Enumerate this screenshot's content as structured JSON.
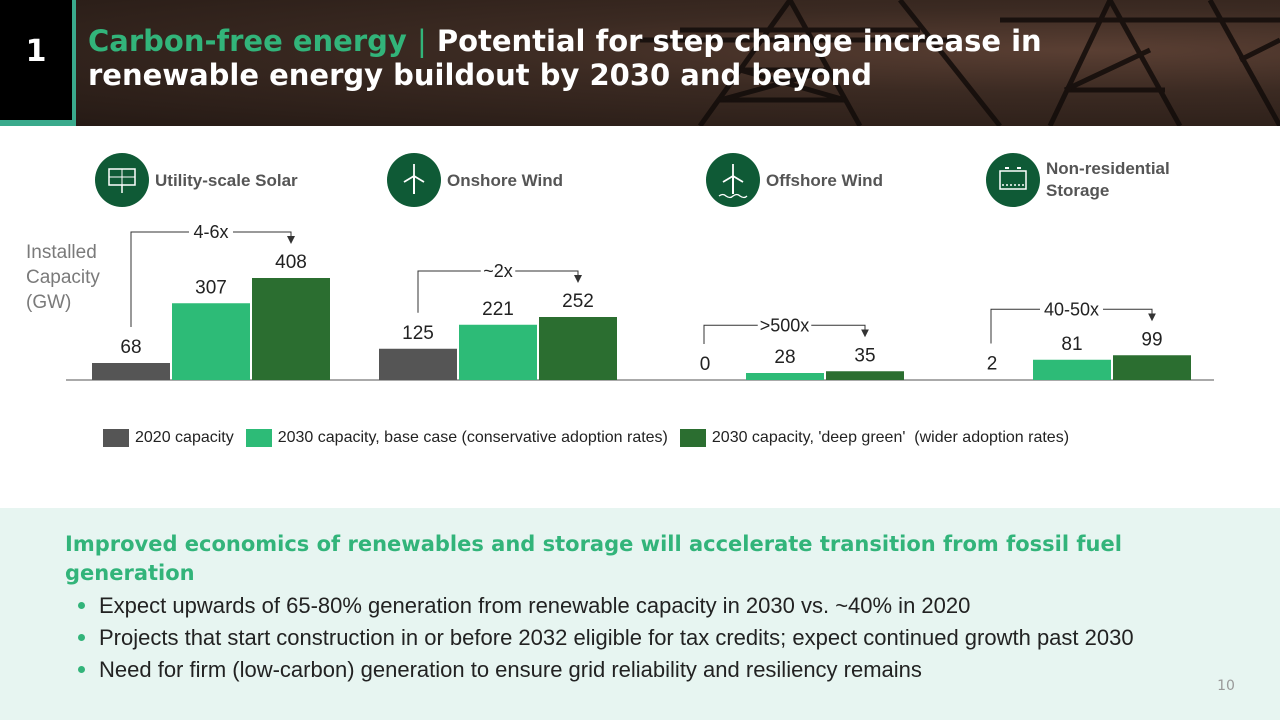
{
  "header": {
    "number": "1",
    "title_highlight": "Carbon-free energy",
    "title_separator": "|",
    "title_rest": "Potential for step change increase in renewable energy buildout by 2030 and beyond"
  },
  "chart_data": {
    "type": "bar",
    "ylabel": [
      "Installed",
      "Capacity",
      "(GW)"
    ],
    "series": [
      {
        "name": "2020 capacity",
        "color": "#555555"
      },
      {
        "name": "2030 capacity, base case (conservative adoption rates)",
        "color": "#2dbb77"
      },
      {
        "name": "2030 capacity, 'deep green'  (wider adoption rates)",
        "color": "#2b6e30"
      }
    ],
    "groups": [
      {
        "title": "Utility-scale Solar",
        "icon": "solar-panel-icon",
        "values": [
          68,
          307,
          408
        ],
        "labels": [
          "68",
          "307",
          "408"
        ],
        "growth": "4-6x"
      },
      {
        "title": "Onshore Wind",
        "icon": "wind-turbine-icon",
        "values": [
          125,
          221,
          252
        ],
        "labels": [
          "125",
          "221",
          "252"
        ],
        "growth": "~2x"
      },
      {
        "title": "Offshore Wind",
        "icon": "offshore-wind-icon",
        "values": [
          0,
          28,
          35
        ],
        "labels": [
          "0",
          "28",
          "35"
        ],
        "growth": ">500x"
      },
      {
        "title": "Non-residential Storage",
        "icon": "battery-icon",
        "values": [
          2,
          81,
          99
        ],
        "labels": [
          "2",
          "81",
          "99"
        ],
        "growth": "40-50x"
      }
    ],
    "colors": {
      "icon_circle": "#0f5a36",
      "accent": "#32b47a"
    }
  },
  "panel": {
    "title": "Improved economics of renewables and storage will accelerate transition from fossil fuel generation",
    "bullets": [
      "Expect upwards of 65-80% generation from renewable capacity in 2030 vs. ~40% in 2020",
      "Projects that start construction in or before 2032 eligible for tax credits; expect continued growth past 2030",
      "Need for firm (low-carbon) generation to ensure grid reliability and resiliency remains"
    ]
  },
  "page_number": "10"
}
